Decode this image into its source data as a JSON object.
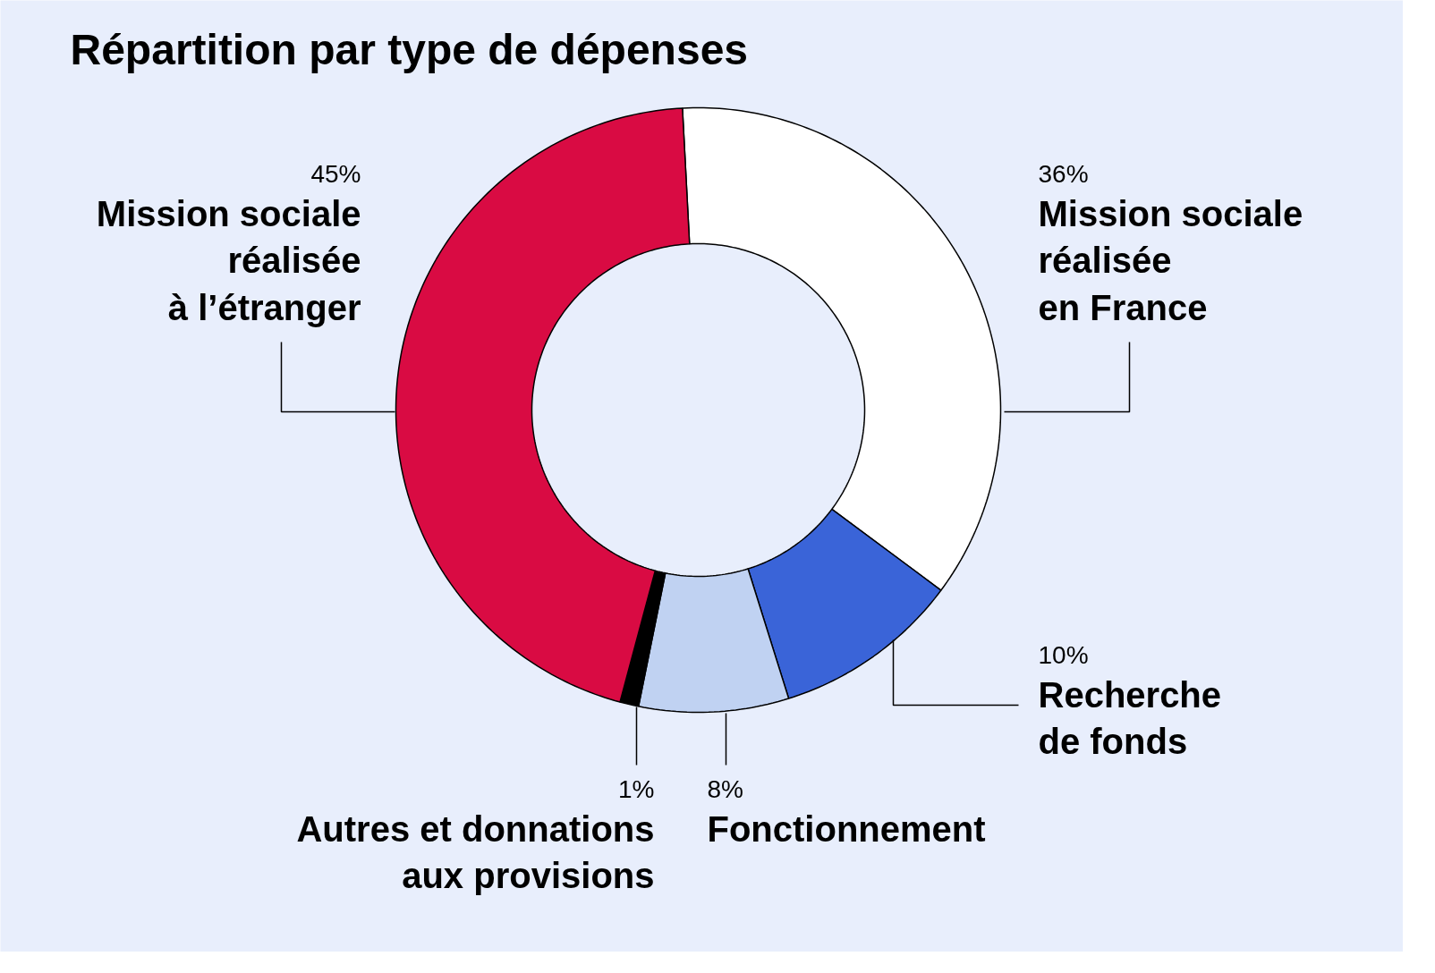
{
  "chart_data": {
    "type": "donut",
    "title": "Répartition par type de dépenses",
    "categories": [
      "Mission sociale\nréalisée\nen France",
      "Recherche\nde fonds",
      "Fonctionnement",
      "Autres et donnations\naux provisions",
      "Mission sociale\nréalisée\nà l’étranger"
    ],
    "values": [
      36,
      10,
      8,
      1,
      45
    ],
    "value_labels": [
      "36%",
      "10%",
      "8%",
      "1%",
      "45%"
    ],
    "colors": [
      "#ffffff",
      "#3a64d8",
      "#c0d2f2",
      "#000000",
      "#d90b43"
    ]
  }
}
